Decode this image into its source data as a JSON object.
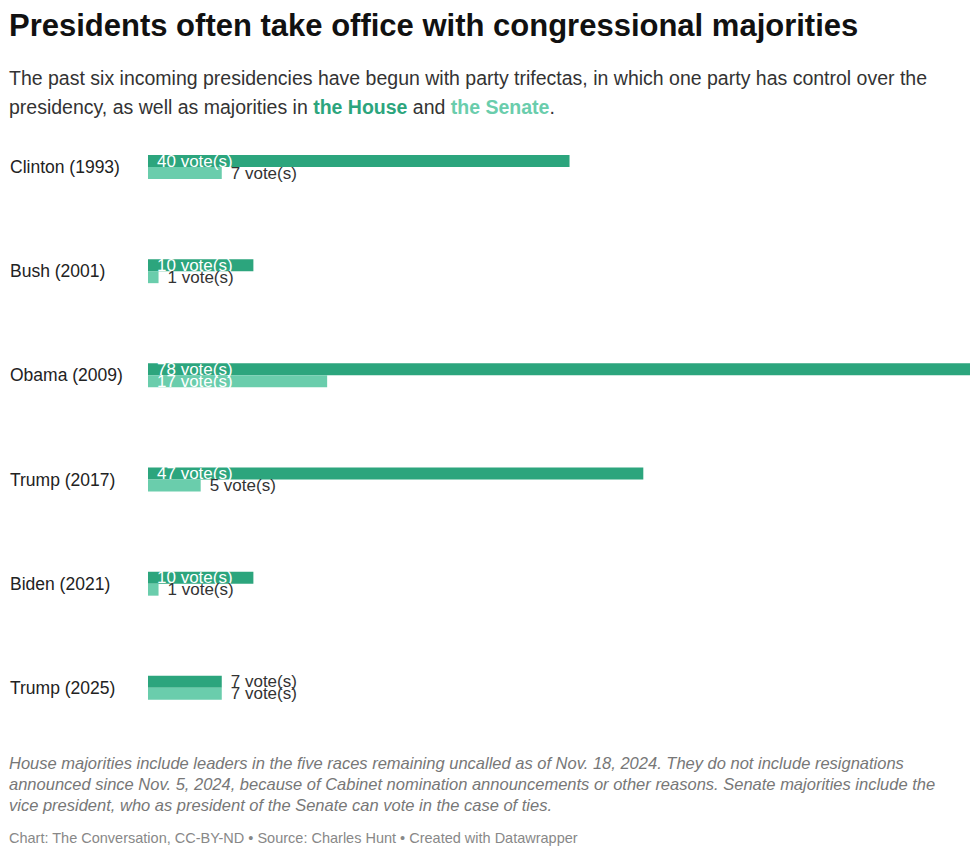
{
  "chart_data": {
    "type": "bar",
    "title": "Presidents often take office with congressional majorities",
    "subtitle": "The past six incoming presidencies have begun with party trifectas, in which one party has control over the presidency, as well as majorities in the House and the Senate.",
    "orientation": "horizontal",
    "categories": [
      "Clinton (1993)",
      "Bush (2001)",
      "Obama (2009)",
      "Trump (2017)",
      "Biden (2021)",
      "Trump (2025)"
    ],
    "series": [
      {
        "name": "the House",
        "color": "#2ca57d",
        "values": [
          40,
          10,
          78,
          47,
          10,
          7
        ],
        "value_labels": [
          "40 vote(s)",
          "10 vote(s)",
          "78 vote(s)",
          "47 vote(s)",
          "10 vote(s)",
          "7 vote(s)"
        ]
      },
      {
        "name": "the Senate",
        "color": "#6acdac",
        "values": [
          7,
          1,
          17,
          5,
          1,
          7
        ],
        "value_labels": [
          "7 vote(s)",
          "1 vote(s)",
          "17 vote(s)",
          "5 vote(s)",
          "1 vote(s)",
          "7 vote(s)"
        ]
      }
    ],
    "xlim": [
      0,
      78
    ],
    "data_labels": true,
    "tick_labels": "y",
    "grid": false,
    "note": "House majorities include leaders in the five races remaining uncalled as of Nov. 18, 2024. They do not include resignations announced since Nov. 5, 2024, because of Cabinet nomination announcements or other reasons. Senate majorities include the vice president, who as president of the Senate can vote in the case of ties.",
    "source": "Chart: The Conversation, CC-BY-ND • Source: Charles Hunt • Created with Datawrapper"
  }
}
